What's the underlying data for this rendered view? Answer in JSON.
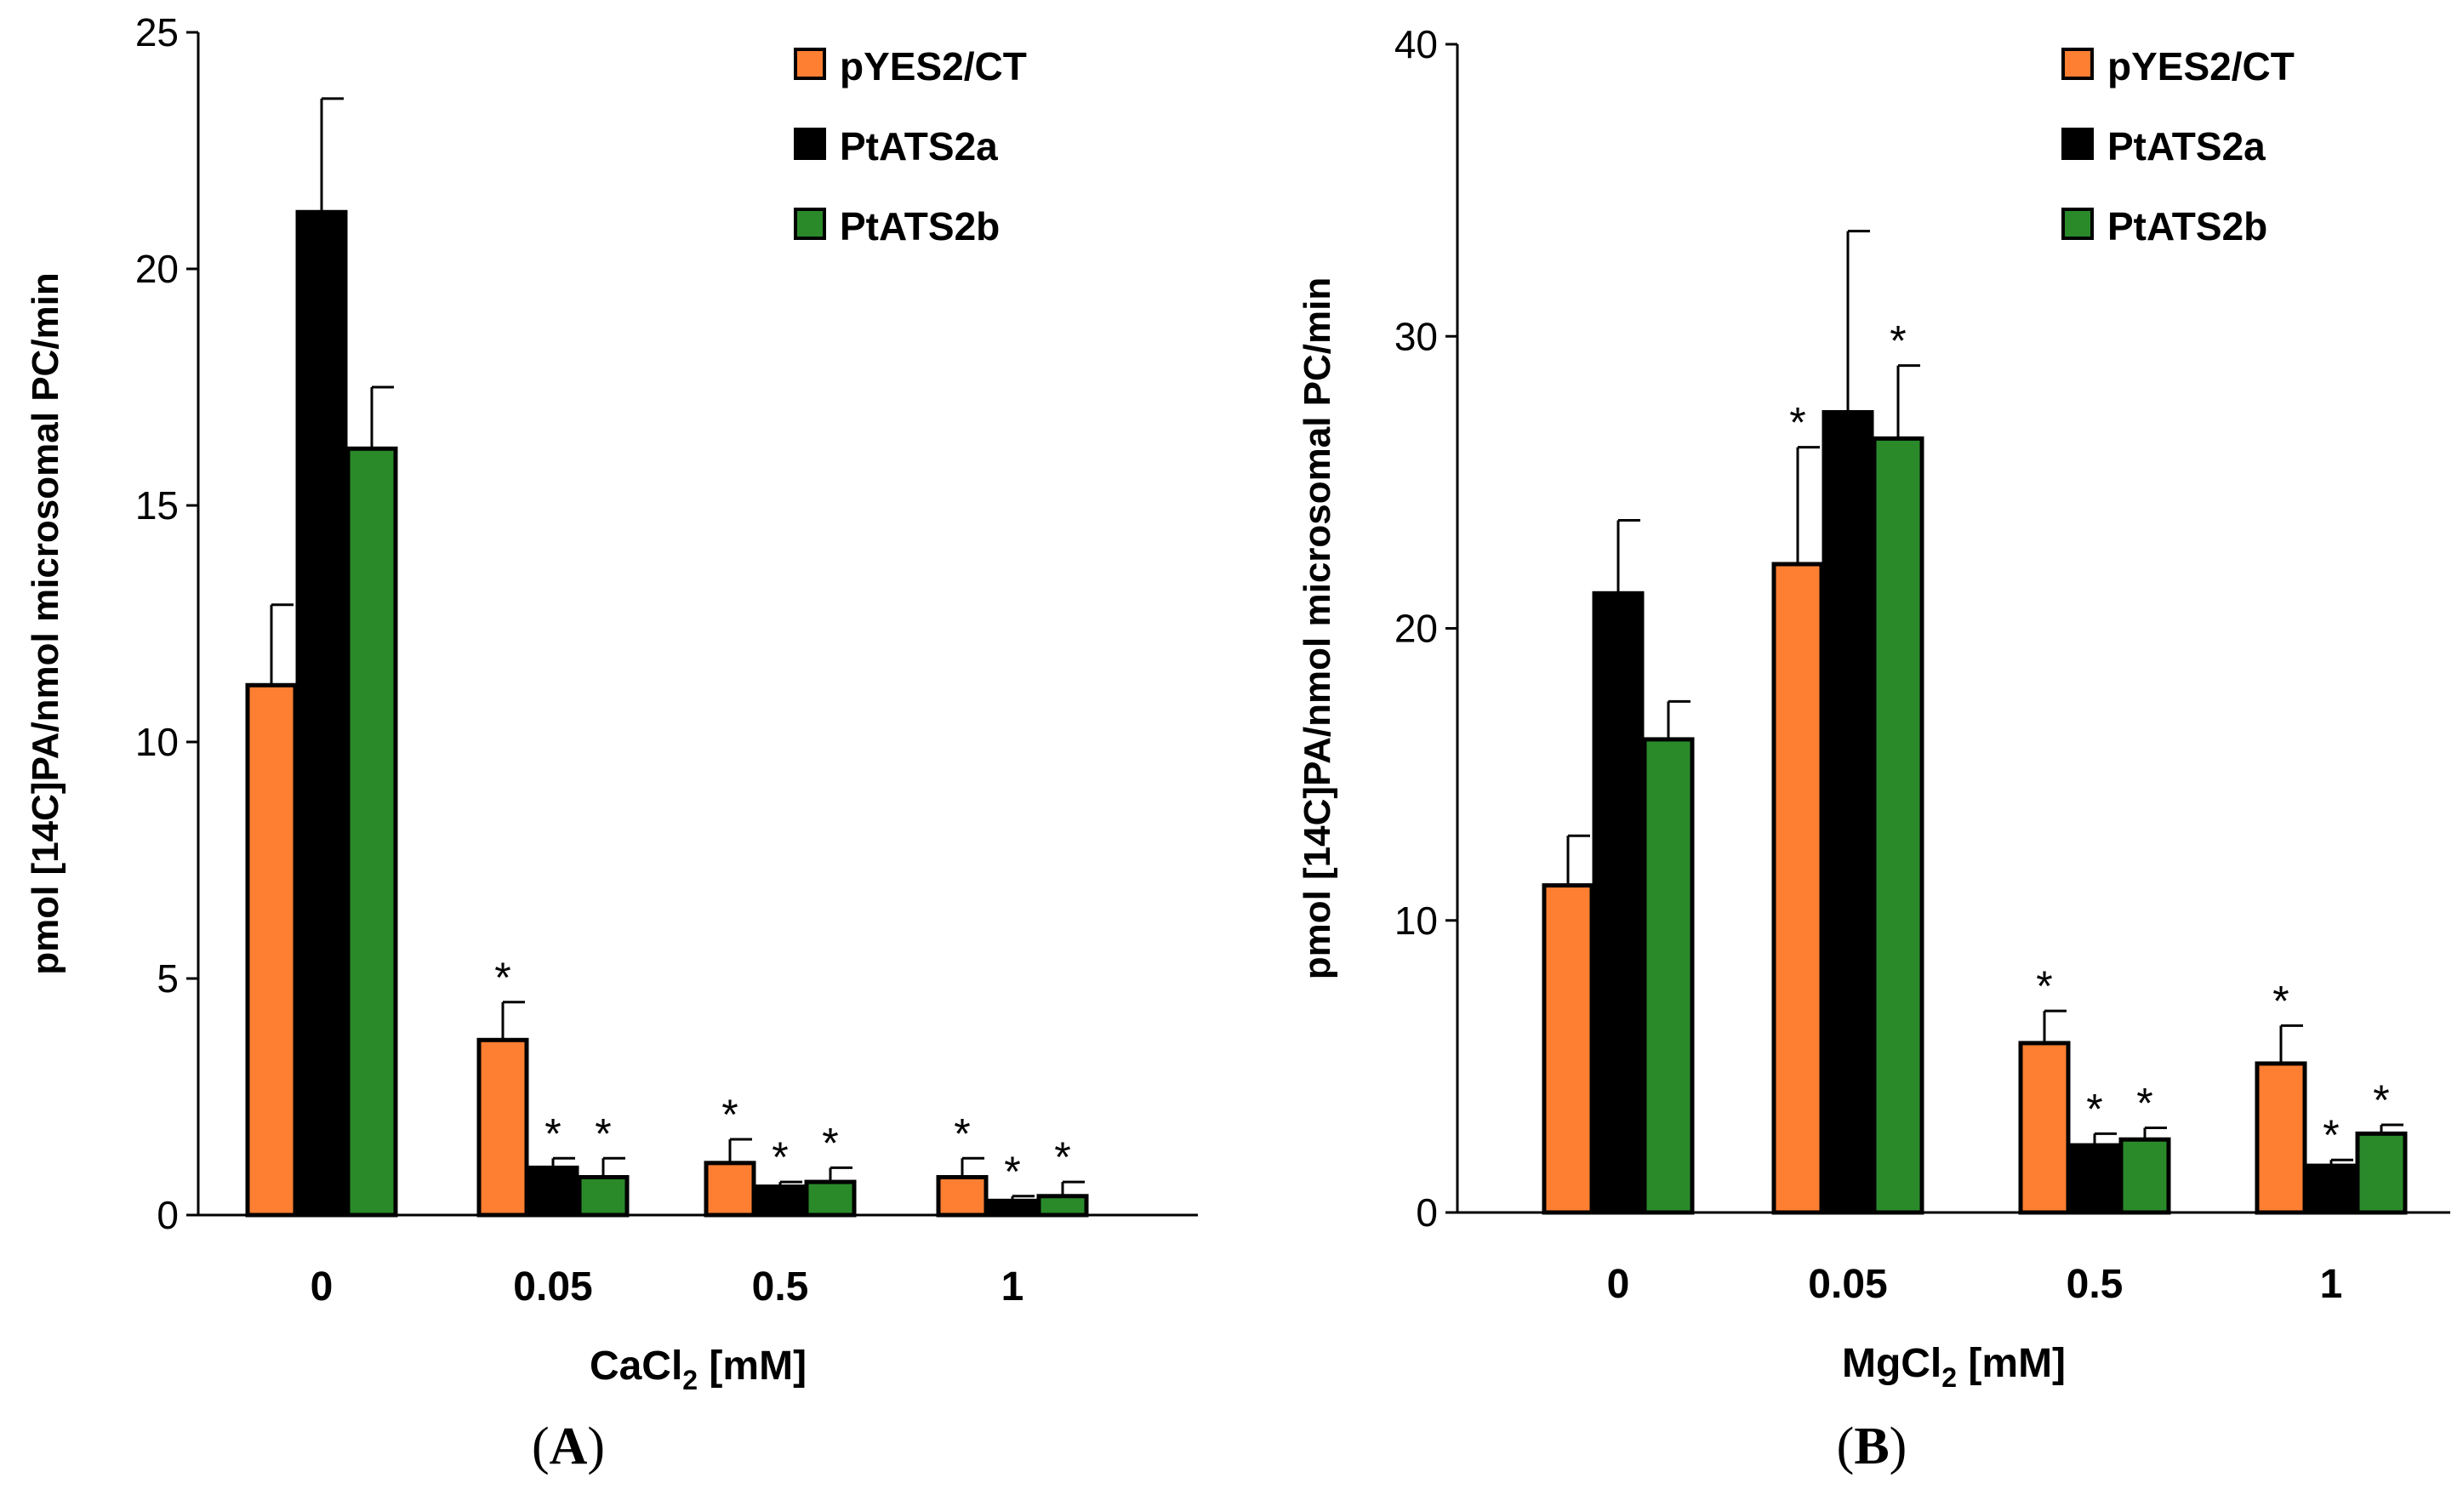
{
  "colors": {
    "pYES2/CT": "#ff7f32",
    "PtATS2a": "#000000",
    "PtATS2b": "#2a8a2a",
    "axis": "#000000"
  },
  "chart_data": [
    {
      "type": "bar",
      "panel_label": "A",
      "title": "",
      "categories": [
        "0",
        "0.05",
        "0.5",
        "1"
      ],
      "xlabel": "CaCl",
      "xlabel_sub": "2",
      "xlabel_suffix": " [mM]",
      "ylabel": "pmol [14C]PA/nmol microsomal PC/min",
      "ylim": [
        0,
        25
      ],
      "yticks": [
        0,
        5,
        10,
        15,
        20,
        25
      ],
      "legend": [
        "pYES2/CT",
        "PtATS2a",
        "PtATS2b"
      ],
      "legend_position": "top-right",
      "series": [
        {
          "name": "pYES2/CT",
          "values": [
            11.2,
            3.7,
            1.1,
            0.8
          ],
          "errors": [
            1.7,
            0.8,
            0.5,
            0.4
          ],
          "significance": [
            "",
            "*",
            "*",
            "*"
          ]
        },
        {
          "name": "PtATS2a",
          "values": [
            21.2,
            1.0,
            0.6,
            0.3
          ],
          "errors": [
            2.4,
            0.2,
            0.1,
            0.1
          ],
          "significance": [
            "",
            "*",
            "*",
            "*"
          ]
        },
        {
          "name": "PtATS2b",
          "values": [
            16.2,
            0.8,
            0.7,
            0.4
          ],
          "errors": [
            1.3,
            0.4,
            0.3,
            0.3
          ],
          "significance": [
            "",
            "*",
            "*",
            "*"
          ]
        }
      ]
    },
    {
      "type": "bar",
      "panel_label": "B",
      "title": "",
      "categories": [
        "0",
        "0.05",
        "0.5",
        "1"
      ],
      "xlabel": "MgCl",
      "xlabel_sub": "2",
      "xlabel_suffix": " [mM]",
      "ylabel": "pmol [14C]PA/nmol microsomal PC/min",
      "ylim": [
        0,
        40
      ],
      "yticks": [
        0,
        10,
        20,
        30,
        40
      ],
      "legend": [
        "pYES2/CT",
        "PtATS2a",
        "PtATS2b"
      ],
      "legend_position": "top-right",
      "series": [
        {
          "name": "pYES2/CT",
          "values": [
            11.2,
            22.2,
            5.8,
            5.1
          ],
          "errors": [
            1.7,
            4.0,
            1.1,
            1.3
          ],
          "significance": [
            "",
            "*",
            "*",
            "*"
          ]
        },
        {
          "name": "PtATS2a",
          "values": [
            21.2,
            27.4,
            2.3,
            1.6
          ],
          "errors": [
            2.5,
            6.2,
            0.4,
            0.2
          ],
          "significance": [
            "",
            "",
            "*",
            "*"
          ]
        },
        {
          "name": "PtATS2b",
          "values": [
            16.2,
            26.5,
            2.5,
            2.7
          ],
          "errors": [
            1.3,
            2.5,
            0.4,
            0.3
          ],
          "significance": [
            "",
            "*",
            "*",
            "*"
          ]
        }
      ]
    }
  ]
}
